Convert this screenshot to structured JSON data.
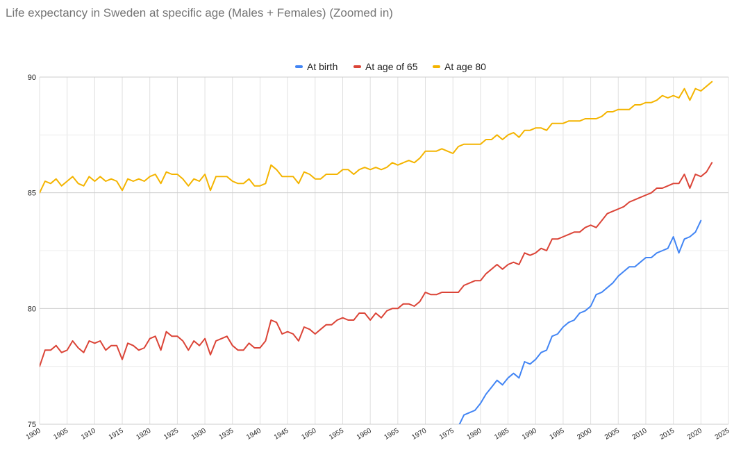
{
  "chart_data": {
    "type": "line",
    "title": "Life expectancy in Sweden at specific age (Males + Females) (Zoomed in)",
    "xlabel": "",
    "ylabel": "",
    "ylim": [
      75,
      90
    ],
    "xlim": [
      1900,
      2025
    ],
    "yticks": [
      75,
      80,
      85,
      90
    ],
    "xticks": [
      1900,
      1905,
      1910,
      1915,
      1920,
      1925,
      1930,
      1935,
      1940,
      1945,
      1950,
      1955,
      1960,
      1965,
      1970,
      1975,
      1980,
      1985,
      1990,
      1995,
      2000,
      2005,
      2010,
      2015,
      2020,
      2025
    ],
    "grid": true,
    "legend_position": "top",
    "x_start": 1900,
    "series": [
      {
        "name": "At birth",
        "color": "#4285f4",
        "values": [
          null,
          null,
          null,
          null,
          null,
          null,
          null,
          null,
          null,
          null,
          null,
          null,
          null,
          null,
          null,
          null,
          null,
          null,
          null,
          null,
          null,
          null,
          null,
          null,
          null,
          null,
          null,
          null,
          null,
          null,
          null,
          null,
          null,
          null,
          null,
          null,
          null,
          null,
          null,
          null,
          null,
          null,
          null,
          null,
          null,
          null,
          null,
          null,
          null,
          null,
          null,
          null,
          null,
          null,
          null,
          null,
          null,
          null,
          null,
          null,
          null,
          null,
          null,
          null,
          null,
          null,
          null,
          null,
          null,
          null,
          null,
          null,
          null,
          null,
          null,
          null,
          74.9,
          75.4,
          75.5,
          75.6,
          75.9,
          76.3,
          76.6,
          76.9,
          76.7,
          77.0,
          77.2,
          77.0,
          77.7,
          77.6,
          77.8,
          78.1,
          78.2,
          78.8,
          78.9,
          79.2,
          79.4,
          79.5,
          79.8,
          79.9,
          80.1,
          80.6,
          80.7,
          80.9,
          81.1,
          81.4,
          81.6,
          81.8,
          81.8,
          82.0,
          82.2,
          82.2,
          82.4,
          82.5,
          82.6,
          83.1,
          82.4,
          83.0,
          83.1,
          83.3,
          83.8
        ]
      },
      {
        "name": "At age of 65",
        "color": "#db4437",
        "values": [
          77.5,
          78.2,
          78.2,
          78.4,
          78.1,
          78.2,
          78.6,
          78.3,
          78.1,
          78.6,
          78.5,
          78.6,
          78.2,
          78.4,
          78.4,
          77.8,
          78.5,
          78.4,
          78.2,
          78.3,
          78.7,
          78.8,
          78.2,
          79.0,
          78.8,
          78.8,
          78.6,
          78.2,
          78.6,
          78.4,
          78.7,
          78.0,
          78.6,
          78.7,
          78.8,
          78.4,
          78.2,
          78.2,
          78.5,
          78.3,
          78.3,
          78.6,
          79.5,
          79.4,
          78.9,
          79.0,
          78.9,
          78.6,
          79.2,
          79.1,
          78.9,
          79.1,
          79.3,
          79.3,
          79.5,
          79.6,
          79.5,
          79.5,
          79.8,
          79.8,
          79.5,
          79.8,
          79.6,
          79.9,
          80.0,
          80.0,
          80.2,
          80.2,
          80.1,
          80.3,
          80.7,
          80.6,
          80.6,
          80.7,
          80.7,
          80.7,
          80.7,
          81.0,
          81.1,
          81.2,
          81.2,
          81.5,
          81.7,
          81.9,
          81.7,
          81.9,
          82.0,
          81.9,
          82.4,
          82.3,
          82.4,
          82.6,
          82.5,
          83.0,
          83.0,
          83.1,
          83.2,
          83.3,
          83.3,
          83.5,
          83.6,
          83.5,
          83.8,
          84.1,
          84.2,
          84.3,
          84.4,
          84.6,
          84.7,
          84.8,
          84.9,
          85.0,
          85.2,
          85.2,
          85.3,
          85.4,
          85.4,
          85.8,
          85.2,
          85.8,
          85.7,
          85.9,
          86.3
        ]
      },
      {
        "name": "At age 80",
        "color": "#f4b400",
        "values": [
          85.0,
          85.5,
          85.4,
          85.6,
          85.3,
          85.5,
          85.7,
          85.4,
          85.3,
          85.7,
          85.5,
          85.7,
          85.5,
          85.6,
          85.5,
          85.1,
          85.6,
          85.5,
          85.6,
          85.5,
          85.7,
          85.8,
          85.4,
          85.9,
          85.8,
          85.8,
          85.6,
          85.3,
          85.6,
          85.5,
          85.8,
          85.1,
          85.7,
          85.7,
          85.7,
          85.5,
          85.4,
          85.4,
          85.6,
          85.3,
          85.3,
          85.4,
          86.2,
          86.0,
          85.7,
          85.7,
          85.7,
          85.4,
          85.9,
          85.8,
          85.6,
          85.6,
          85.8,
          85.8,
          85.8,
          86.0,
          86.0,
          85.8,
          86.0,
          86.1,
          86.0,
          86.1,
          86.0,
          86.1,
          86.3,
          86.2,
          86.3,
          86.4,
          86.3,
          86.5,
          86.8,
          86.8,
          86.8,
          86.9,
          86.8,
          86.7,
          87.0,
          87.1,
          87.1,
          87.1,
          87.1,
          87.3,
          87.3,
          87.5,
          87.3,
          87.5,
          87.6,
          87.4,
          87.7,
          87.7,
          87.8,
          87.8,
          87.7,
          88.0,
          88.0,
          88.0,
          88.1,
          88.1,
          88.1,
          88.2,
          88.2,
          88.2,
          88.3,
          88.5,
          88.5,
          88.6,
          88.6,
          88.6,
          88.8,
          88.8,
          88.9,
          88.9,
          89.0,
          89.2,
          89.1,
          89.2,
          89.1,
          89.5,
          89.0,
          89.5,
          89.4,
          89.6,
          89.8
        ]
      }
    ]
  }
}
